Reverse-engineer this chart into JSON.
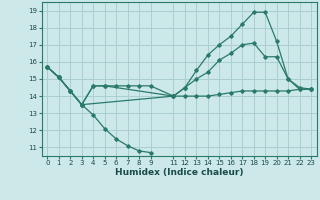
{
  "xlabel": "Humidex (Indice chaleur)",
  "background_color": "#cce8e8",
  "grid_color": "#aacfcf",
  "line_color": "#2a7a6a",
  "xlim": [
    -0.5,
    23.5
  ],
  "ylim": [
    10.5,
    19.5
  ],
  "xticks": [
    0,
    1,
    2,
    3,
    4,
    5,
    6,
    7,
    8,
    9,
    11,
    12,
    13,
    14,
    15,
    16,
    17,
    18,
    19,
    20,
    21,
    22,
    23
  ],
  "yticks": [
    11,
    12,
    13,
    14,
    15,
    16,
    17,
    18,
    19
  ],
  "lines": [
    {
      "x": [
        0,
        1,
        2,
        3,
        4,
        5,
        6,
        7,
        8,
        9
      ],
      "y": [
        15.7,
        15.1,
        14.3,
        13.5,
        12.9,
        12.1,
        11.5,
        11.1,
        10.8,
        10.7
      ]
    },
    {
      "x": [
        0,
        1,
        2,
        3,
        4,
        5,
        6,
        7,
        8,
        9,
        11,
        12,
        13,
        14,
        15,
        16,
        17,
        18,
        19,
        20,
        21,
        22,
        23
      ],
      "y": [
        15.7,
        15.1,
        14.3,
        13.5,
        14.6,
        14.6,
        14.6,
        14.6,
        14.6,
        14.6,
        14.0,
        14.0,
        14.0,
        14.0,
        14.1,
        14.2,
        14.3,
        14.3,
        14.3,
        14.3,
        14.3,
        14.4,
        14.4
      ]
    },
    {
      "x": [
        0,
        1,
        2,
        3,
        4,
        5,
        11,
        12,
        13,
        14,
        15,
        16,
        17,
        18,
        19,
        20,
        21,
        22,
        23
      ],
      "y": [
        15.7,
        15.1,
        14.3,
        13.5,
        14.6,
        14.6,
        14.0,
        14.5,
        15.0,
        15.4,
        16.1,
        16.5,
        17.0,
        17.1,
        16.3,
        16.3,
        15.0,
        14.4,
        14.4
      ]
    },
    {
      "x": [
        0,
        1,
        2,
        3,
        11,
        12,
        13,
        14,
        15,
        16,
        17,
        18,
        19,
        20,
        21,
        22,
        23
      ],
      "y": [
        15.7,
        15.1,
        14.3,
        13.5,
        14.0,
        14.5,
        15.5,
        16.4,
        17.0,
        17.5,
        18.2,
        18.9,
        18.9,
        17.2,
        15.0,
        14.5,
        14.4
      ]
    }
  ]
}
